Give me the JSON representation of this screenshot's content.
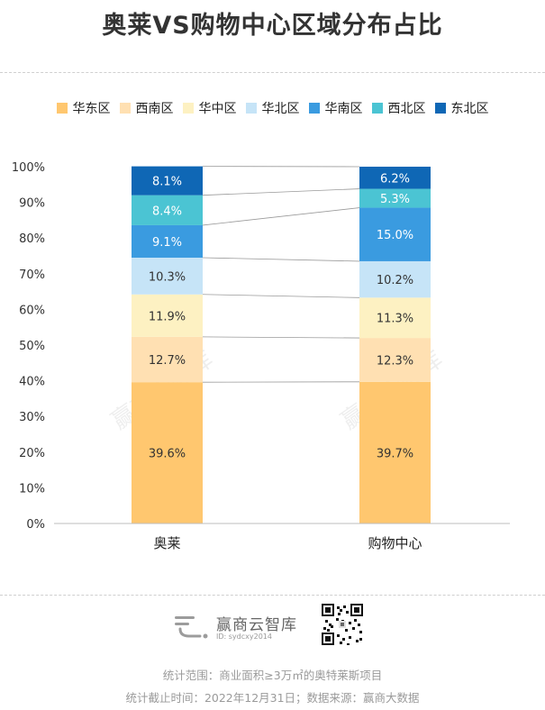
{
  "title": "奥莱VS购物中心区域分布占比",
  "chart_data": {
    "type": "bar",
    "stacked": true,
    "categories": [
      "奥莱",
      "购物中心"
    ],
    "series": [
      {
        "name": "华东区",
        "values": [
          39.6,
          39.7
        ],
        "color": "#ffc76f"
      },
      {
        "name": "西南区",
        "values": [
          12.7,
          12.3
        ],
        "color": "#ffe0b2"
      },
      {
        "name": "华中区",
        "values": [
          11.9,
          11.3
        ],
        "color": "#fdf1c2"
      },
      {
        "name": "华北区",
        "values": [
          10.3,
          10.2
        ],
        "color": "#c6e4f7"
      },
      {
        "name": "华南区",
        "values": [
          9.1,
          15.0
        ],
        "color": "#3a9be0"
      },
      {
        "name": "西北区",
        "values": [
          8.4,
          5.3
        ],
        "color": "#4bc4d3"
      },
      {
        "name": "东北区",
        "values": [
          8.1,
          6.2
        ],
        "color": "#0f67b5"
      }
    ],
    "value_labels": [
      [
        "39.6%",
        "12.7%",
        "11.9%",
        "10.3%",
        "9.1%",
        "8.4%",
        "8.1%"
      ],
      [
        "39.7%",
        "12.3%",
        "11.3%",
        "10.2%",
        "15.0%",
        "5.3%",
        "6.2%"
      ]
    ],
    "yticks": [
      "0%",
      "10%",
      "20%",
      "30%",
      "40%",
      "50%",
      "60%",
      "70%",
      "80%",
      "90%",
      "100%"
    ],
    "ylim": [
      0,
      100
    ],
    "legend_position": "top",
    "grid": false,
    "connector_lines": true
  },
  "watermark": "赢商云智库",
  "footer": {
    "brand": "赢商云智库",
    "id_text": "ID: sydcxy2014",
    "note1": "统计范围：商业面积≥3万㎡的奥特莱斯项目",
    "note2": "统计截止时间：2022年12月31日；数据来源：赢商大数据"
  }
}
